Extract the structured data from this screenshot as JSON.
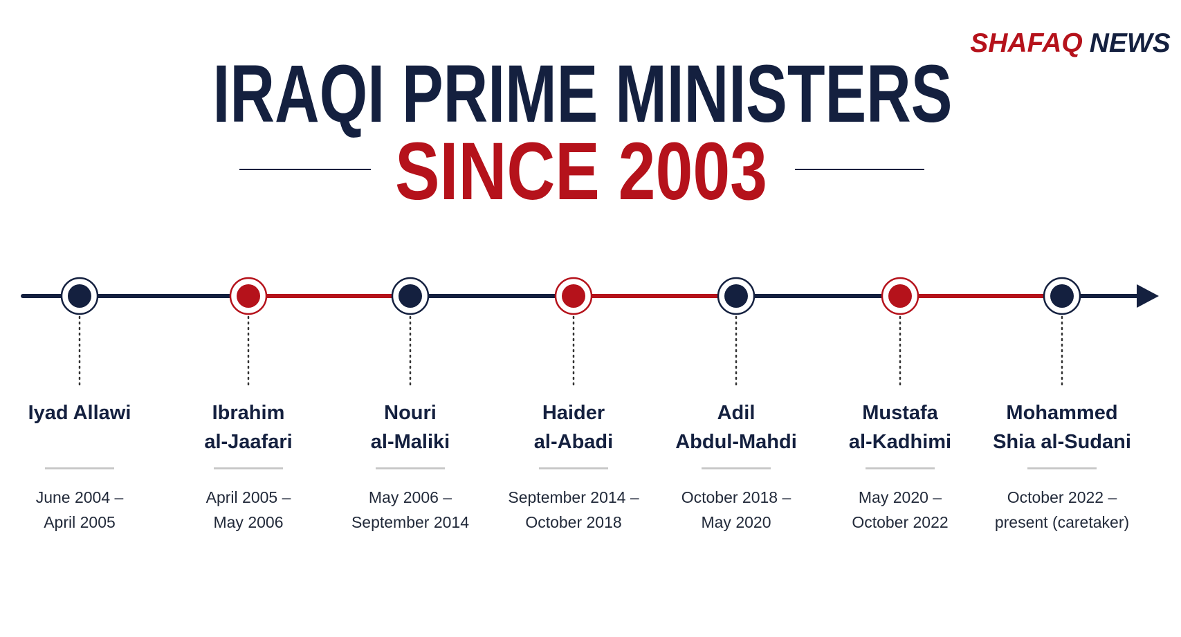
{
  "brand": {
    "part1": "SHAFAQ",
    "part2": "NEWS"
  },
  "title": {
    "line1": "IRAQI PRIME MINISTERS",
    "line2": "SINCE 2003"
  },
  "timeline": [
    {
      "name": [
        "Iyad Allawi"
      ],
      "dates": [
        "June 2004 –",
        "April 2005"
      ]
    },
    {
      "name": [
        "Ibrahim",
        "al-Jaafari"
      ],
      "dates": [
        "April 2005 –",
        "May 2006"
      ]
    },
    {
      "name": [
        "Nouri",
        "al-Maliki"
      ],
      "dates": [
        "May 2006 –",
        "September 2014"
      ]
    },
    {
      "name": [
        "Haider",
        "al-Abadi"
      ],
      "dates": [
        "September 2014 –",
        "October 2018"
      ]
    },
    {
      "name": [
        "Adil",
        "Abdul-Mahdi"
      ],
      "dates": [
        "October 2018 –",
        "May 2020"
      ]
    },
    {
      "name": [
        "Mustafa",
        "al-Kadhimi"
      ],
      "dates": [
        "May 2020 –",
        "October 2022"
      ]
    },
    {
      "name": [
        "Mohammed",
        "Shia al-Sudani"
      ],
      "dates": [
        "October 2022 –",
        "present (caretaker)"
      ]
    }
  ]
}
